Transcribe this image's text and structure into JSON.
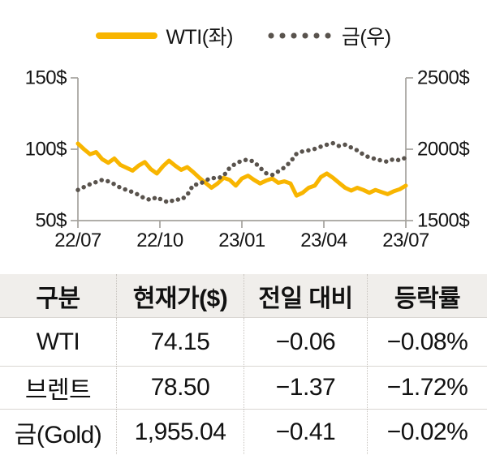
{
  "legend": {
    "items": [
      {
        "label": "WTI(좌)",
        "swatch": "line",
        "color": "#F8B500"
      },
      {
        "label": "금(우)",
        "swatch": "dots",
        "color": "#59534D"
      }
    ]
  },
  "chart_data": {
    "type": "line",
    "x_range": [
      "22/07",
      "23/07"
    ],
    "x_tick_labels": [
      "22/07",
      "22/10",
      "23/01",
      "23/04",
      "23/07"
    ],
    "left_axis": {
      "ticks": [
        "150$",
        "100$",
        "50$"
      ],
      "min": 50,
      "max": 150
    },
    "right_axis": {
      "ticks": [
        "2500$",
        "2000$",
        "1500$"
      ],
      "min": 1500,
      "max": 2500
    },
    "grid": false,
    "legend_position": "top-center",
    "axis_color": "#a5a29d",
    "series": [
      {
        "name": "WTI(좌)",
        "axis": "left",
        "style": "solid",
        "color": "#F8B500",
        "values": [
          104,
          100,
          96.5,
          98,
          93,
          90.5,
          93.5,
          89,
          87,
          85,
          88.5,
          91,
          86,
          83,
          88,
          92,
          88.5,
          85.5,
          87.5,
          84,
          80,
          76.5,
          73,
          76,
          80,
          78.5,
          74.5,
          79.5,
          81.5,
          78.5,
          76,
          78,
          79.5,
          76.5,
          77.5,
          76,
          67.5,
          69.5,
          73,
          74.5,
          80.5,
          83,
          80,
          76.5,
          73,
          71,
          73,
          71.5,
          69.5,
          71.5,
          70,
          68.5,
          70.5,
          72,
          74.5
        ]
      },
      {
        "name": "금(우)",
        "axis": "right",
        "style": "dotted",
        "color": "#59534D",
        "values": [
          1715,
          1735,
          1755,
          1770,
          1785,
          1775,
          1755,
          1730,
          1715,
          1700,
          1680,
          1655,
          1645,
          1665,
          1640,
          1628,
          1650,
          1645,
          1680,
          1750,
          1755,
          1780,
          1800,
          1795,
          1815,
          1870,
          1900,
          1920,
          1928,
          1912,
          1870,
          1832,
          1820,
          1845,
          1872,
          1912,
          1968,
          1985,
          1992,
          2002,
          2018,
          2032,
          2042,
          2022,
          2032,
          2012,
          1992,
          1963,
          1942,
          1932,
          1920,
          1912,
          1932,
          1922,
          1942
        ]
      }
    ]
  },
  "table": {
    "headers": [
      "구분",
      "현재가($)",
      "전일 대비",
      "등락률"
    ],
    "rows": [
      {
        "name": "WTI",
        "price": "74.15",
        "change": "−0.06",
        "pct": "−0.08%"
      },
      {
        "name": "브렌트",
        "price": "78.50",
        "change": "−1.37",
        "pct": "−1.72%"
      },
      {
        "name": "금(Gold)",
        "price": "1,955.04",
        "change": "−0.41",
        "pct": "−0.02%"
      }
    ]
  }
}
